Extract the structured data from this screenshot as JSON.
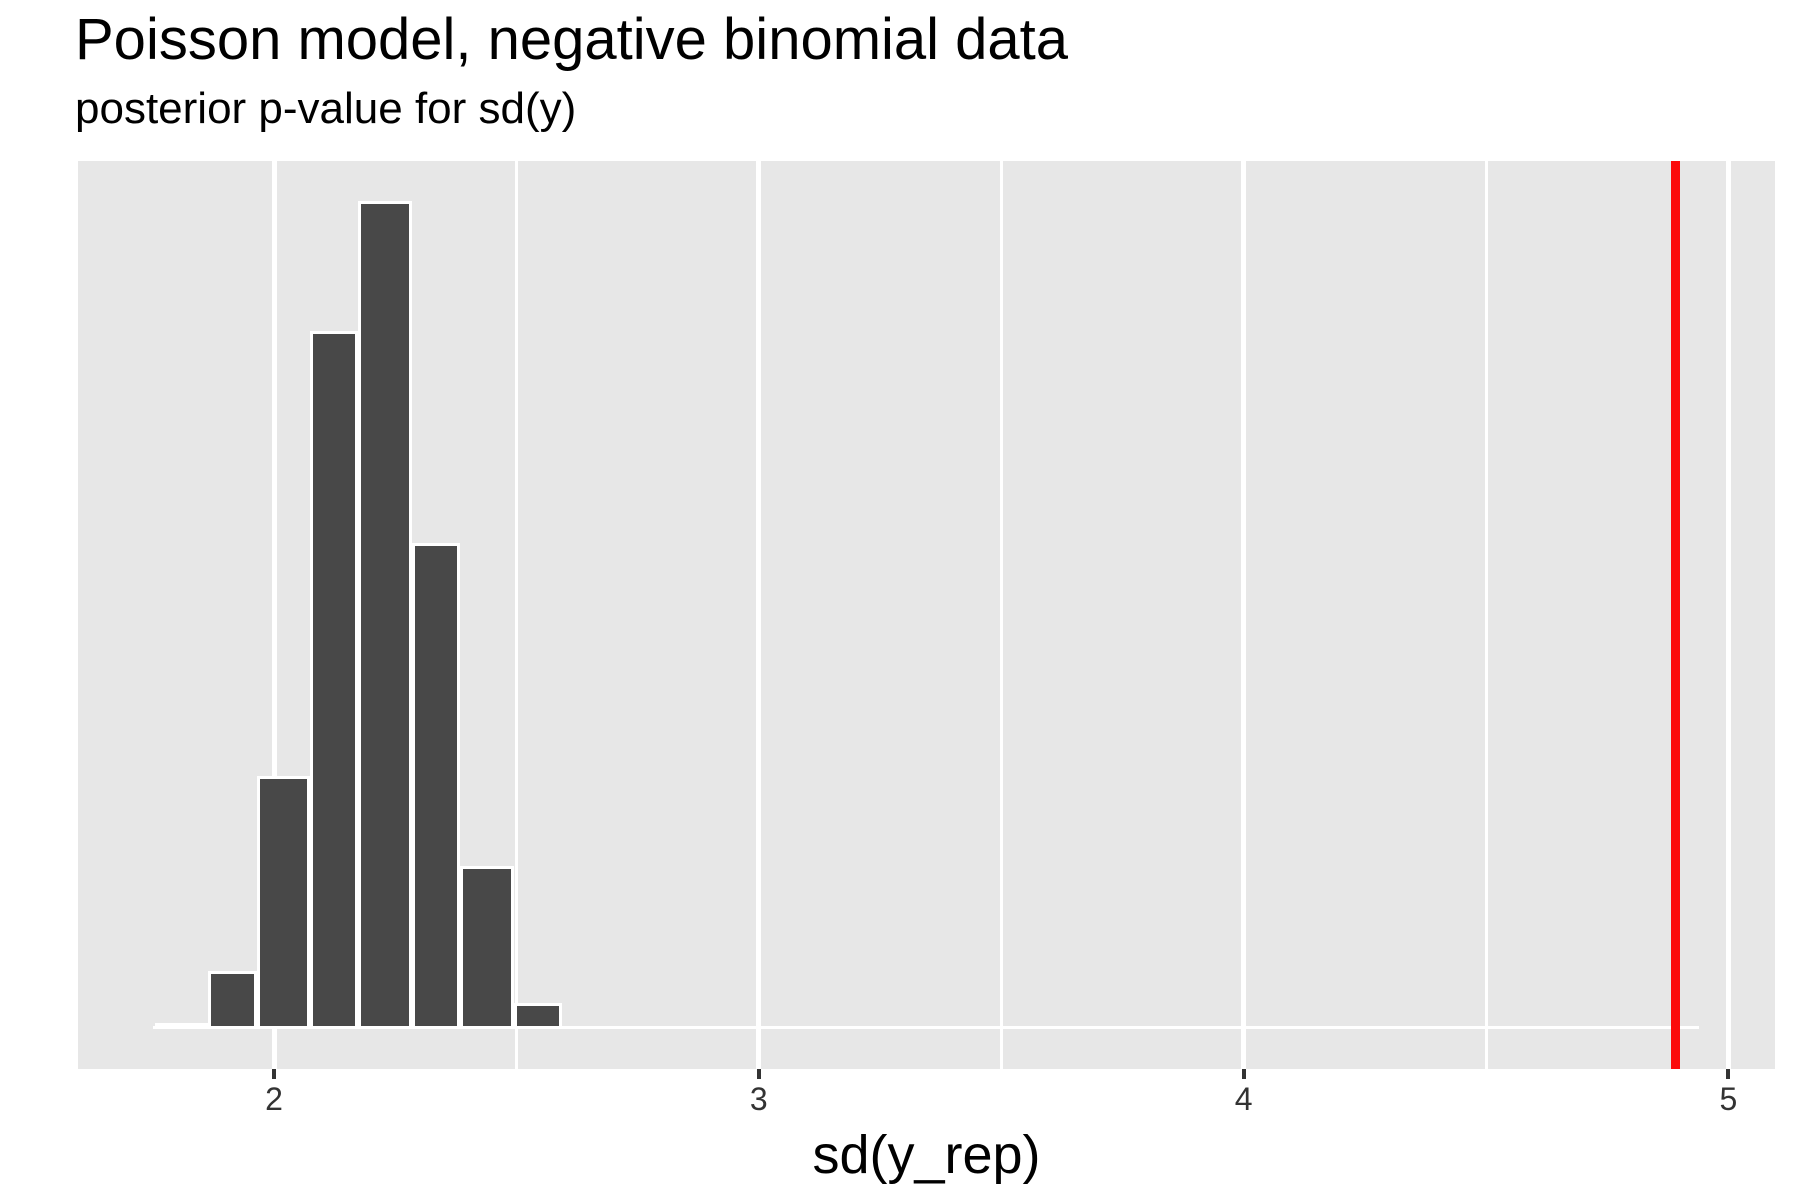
{
  "header": {
    "title": "Poisson model, negative binomial data",
    "subtitle": "posterior p-value for sd(y)"
  },
  "axis": {
    "x_title": "sd(y_rep)",
    "x_tick_labels": [
      "2",
      "3",
      "4",
      "5"
    ]
  },
  "chart_data": {
    "type": "bar",
    "subtype": "histogram",
    "title": "Poisson model, negative binomial data",
    "subtitle": "posterior p-value for sd(y)",
    "xlabel": "sd(y_rep)",
    "ylabel": "",
    "x_ticks": [
      2,
      3,
      4,
      5
    ],
    "x_minor_ticks": [
      2.5,
      3.5,
      4.5
    ],
    "xlim": [
      1.6,
      5.1
    ],
    "y_axis_visible": false,
    "grid": "vertical-only",
    "legend": "none",
    "bin_edges": [
      1.75,
      1.86,
      1.96,
      2.07,
      2.17,
      2.28,
      2.38,
      2.49,
      2.59
    ],
    "bin_centers": [
      1.8,
      1.91,
      2.02,
      2.12,
      2.23,
      2.33,
      2.44,
      2.54
    ],
    "counts_relative": [
      0.002,
      0.066,
      0.302,
      0.842,
      1.0,
      0.585,
      0.193,
      0.027
    ],
    "baseline_extent": [
      1.75,
      4.94
    ],
    "observed_statistic_line": {
      "x": 4.89
    },
    "colors": {
      "bar_fill": "#484848",
      "bar_outline": "#FFFFFF",
      "panel_background": "#E7E7E7",
      "gridline": "#FFFFFF",
      "observed_line": "#FB0B0B",
      "tick_text": "#333333",
      "title_text": "#000000"
    }
  }
}
